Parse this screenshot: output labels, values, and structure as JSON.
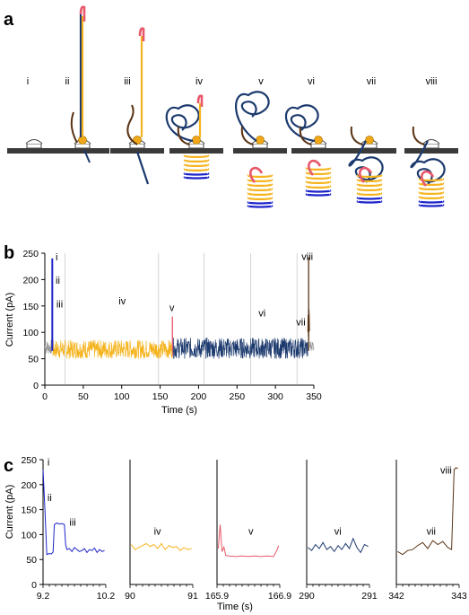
{
  "panels": {
    "a": "a",
    "b": "b",
    "c": "c"
  },
  "stage_labels": [
    "i",
    "ii",
    "iii",
    "iv",
    "v",
    "vi",
    "vii",
    "viii"
  ],
  "colors": {
    "yellow": "#f5b41e",
    "navy": "#1c3a6e",
    "blue": "#1d24c9",
    "pink": "#e8586a",
    "brown": "#5a3415",
    "grey": "#9a9a9a",
    "gold": "#f0a81a",
    "platform": "#3a3a3a"
  },
  "chart_data": [
    {
      "type": "line",
      "panel": "b",
      "xlabel": "Time (s)",
      "ylabel": "Current (pA)",
      "xlim": [
        0,
        350
      ],
      "ylim": [
        0,
        250
      ],
      "xticks": [
        0,
        50,
        100,
        150,
        200,
        250,
        300,
        350
      ],
      "yticks": [
        0,
        50,
        100,
        150,
        200,
        250
      ],
      "segments": [
        {
          "color": "grey",
          "x": [
            0,
            9.2
          ],
          "baseline": 72,
          "noise": 14
        },
        {
          "color": "blue",
          "x": [
            9.2,
            10.2
          ],
          "baseline": 90,
          "noise": 20
        },
        {
          "color": "yellow",
          "x": [
            10.2,
            165.9
          ],
          "baseline": 68,
          "noise": 18
        },
        {
          "color": "pink",
          "x": [
            165.9,
            166.9
          ],
          "baseline": 80,
          "noise": 25
        },
        {
          "color": "navy",
          "x": [
            166.9,
            342
          ],
          "baseline": 70,
          "noise": 20
        },
        {
          "color": "brown",
          "x": [
            342,
            344.5
          ],
          "baseline": 110,
          "noise": 40
        },
        {
          "color": "grey",
          "x": [
            344.5,
            350
          ],
          "baseline": 75,
          "noise": 10
        }
      ],
      "spikes": [
        {
          "x": 9.3,
          "y": 240,
          "color": "blue"
        },
        {
          "x": 10.1,
          "y": 240,
          "color": "blue"
        },
        {
          "x": 166.0,
          "y": 130,
          "color": "pink"
        },
        {
          "x": 343.2,
          "y": 242,
          "color": "brown"
        }
      ],
      "markers": [
        {
          "x": 26,
          "color": "grey"
        },
        {
          "x": 148,
          "color": "grey"
        },
        {
          "x": 207,
          "color": "grey"
        },
        {
          "x": 268,
          "color": "grey"
        },
        {
          "x": 328,
          "color": "grey"
        }
      ],
      "annotations": [
        {
          "text": "i",
          "x": 14,
          "y": 236
        },
        {
          "text": "ii",
          "x": 14,
          "y": 192
        },
        {
          "text": "iii",
          "x": 15,
          "y": 147
        },
        {
          "text": "iv",
          "x": 96,
          "y": 153
        },
        {
          "text": "v",
          "x": 162,
          "y": 140
        },
        {
          "text": "vi",
          "x": 278,
          "y": 130
        },
        {
          "text": "vii",
          "x": 327,
          "y": 113
        },
        {
          "text": "viii",
          "x": 334,
          "y": 237
        }
      ]
    },
    {
      "type": "line",
      "panel": "c",
      "ylabel": "Current (pA)",
      "xlabel": "Time (s)",
      "ylim": [
        0,
        250
      ],
      "yticks": [
        0,
        50,
        100,
        150,
        200,
        250
      ],
      "subplots": [
        {
          "label": "i–iii",
          "color": "blue",
          "xlim": [
            9.2,
            10.2
          ],
          "xtick_labels": [
            "9.2",
            "10.2"
          ],
          "points": [
            [
              9.2,
              230
            ],
            [
              9.23,
              150
            ],
            [
              9.26,
              60
            ],
            [
              9.3,
              62
            ],
            [
              9.33,
              61
            ],
            [
              9.36,
              65
            ],
            [
              9.38,
              120
            ],
            [
              9.42,
              123
            ],
            [
              9.46,
              121
            ],
            [
              9.5,
              122
            ],
            [
              9.54,
              120
            ],
            [
              9.56,
              80
            ],
            [
              9.58,
              70
            ],
            [
              9.62,
              72
            ],
            [
              9.66,
              66
            ],
            [
              9.7,
              74
            ],
            [
              9.74,
              70
            ],
            [
              9.78,
              66
            ],
            [
              9.82,
              68
            ],
            [
              9.86,
              72
            ],
            [
              9.9,
              64
            ],
            [
              9.94,
              70
            ],
            [
              9.98,
              68
            ],
            [
              10.02,
              73
            ],
            [
              10.06,
              64
            ],
            [
              10.1,
              70
            ],
            [
              10.14,
              66
            ],
            [
              10.18,
              68
            ]
          ],
          "labels": [
            {
              "text": "i",
              "x": 9.27,
              "y": 238
            },
            {
              "text": "ii",
              "x": 9.27,
              "y": 167
            },
            {
              "text": "iii",
              "x": 9.62,
              "y": 118
            }
          ]
        },
        {
          "label": "iv",
          "color": "yellow",
          "xlim": [
            90,
            91
          ],
          "xtick_labels": [
            "90",
            "91"
          ],
          "points": [
            [
              90.02,
              80
            ],
            [
              90.08,
              70
            ],
            [
              90.14,
              74
            ],
            [
              90.2,
              78
            ],
            [
              90.26,
              82
            ],
            [
              90.32,
              76
            ],
            [
              90.38,
              80
            ],
            [
              90.44,
              72
            ],
            [
              90.5,
              82
            ],
            [
              90.56,
              70
            ],
            [
              90.62,
              78
            ],
            [
              90.68,
              74
            ],
            [
              90.74,
              76
            ],
            [
              90.8,
              68
            ],
            [
              90.86,
              74
            ],
            [
              90.92,
              70
            ],
            [
              90.98,
              72
            ]
          ],
          "labels": [
            {
              "text": "iv",
              "x": 90.38,
              "y": 100
            }
          ]
        },
        {
          "label": "v",
          "color": "pink",
          "xlim": [
            165.9,
            166.9
          ],
          "xtick_labels": [
            "165.9",
            "166.9"
          ],
          "points": [
            [
              165.92,
              72
            ],
            [
              165.95,
              120
            ],
            [
              165.98,
              66
            ],
            [
              166.01,
              75
            ],
            [
              166.04,
              58
            ],
            [
              166.1,
              57
            ],
            [
              166.2,
              56
            ],
            [
              166.3,
              57
            ],
            [
              166.4,
              56
            ],
            [
              166.5,
              57
            ],
            [
              166.6,
              56
            ],
            [
              166.7,
              57
            ],
            [
              166.8,
              56
            ],
            [
              166.86,
              70
            ],
            [
              166.88,
              78
            ]
          ],
          "labels": [
            {
              "text": "v",
              "x": 166.4,
              "y": 100
            }
          ]
        },
        {
          "label": "vi",
          "color": "navy",
          "xlim": [
            290,
            291
          ],
          "xtick_labels": [
            "290",
            "291"
          ],
          "points": [
            [
              290.02,
              74
            ],
            [
              290.08,
              68
            ],
            [
              290.14,
              80
            ],
            [
              290.2,
              72
            ],
            [
              290.26,
              84
            ],
            [
              290.32,
              70
            ],
            [
              290.38,
              76
            ],
            [
              290.44,
              66
            ],
            [
              290.5,
              78
            ],
            [
              290.56,
              70
            ],
            [
              290.62,
              82
            ],
            [
              290.68,
              72
            ],
            [
              290.74,
              92
            ],
            [
              290.8,
              74
            ],
            [
              290.86,
              64
            ],
            [
              290.92,
              80
            ],
            [
              290.98,
              76
            ]
          ],
          "labels": [
            {
              "text": "vi",
              "x": 290.44,
              "y": 100
            }
          ]
        },
        {
          "label": "vii–viii",
          "color": "brown",
          "xlim": [
            342,
            343
          ],
          "xtick_labels": [
            "342",
            "343"
          ],
          "points": [
            [
              342.02,
              66
            ],
            [
              342.1,
              60
            ],
            [
              342.18,
              68
            ],
            [
              342.26,
              70
            ],
            [
              342.34,
              78
            ],
            [
              342.42,
              84
            ],
            [
              342.5,
              72
            ],
            [
              342.58,
              88
            ],
            [
              342.66,
              80
            ],
            [
              342.74,
              86
            ],
            [
              342.82,
              74
            ],
            [
              342.88,
              70
            ],
            [
              342.92,
              230
            ],
            [
              342.95,
              234
            ],
            [
              342.98,
              232
            ]
          ],
          "labels": [
            {
              "text": "vii",
              "x": 342.48,
              "y": 100
            },
            {
              "text": "viii",
              "x": 342.7,
              "y": 222
            }
          ]
        }
      ]
    }
  ]
}
